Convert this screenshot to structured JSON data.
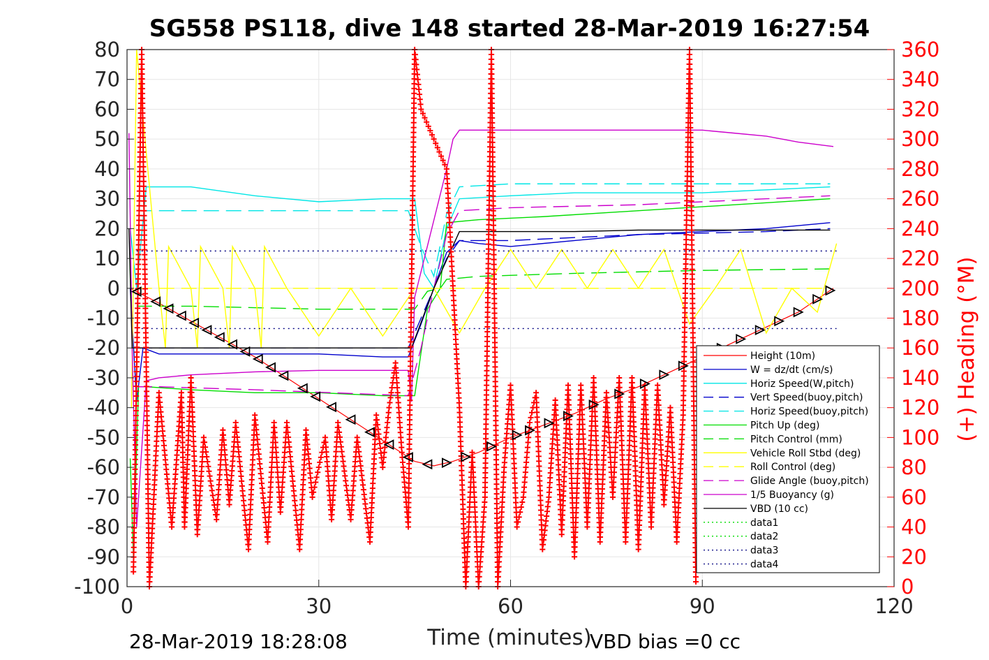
{
  "chart_data": {
    "type": "line",
    "title": "SG558 PS118, dive 148 started 28-Mar-2019 16:27:54",
    "xlabel": "Time (minutes)",
    "ylabel_right": "(+) Heading (°M)",
    "xlim": [
      0,
      120
    ],
    "ylim_left": [
      -100,
      80
    ],
    "ylim_right": [
      0,
      360
    ],
    "x_ticks": [
      0,
      30,
      60,
      90,
      120
    ],
    "y_left_ticks": [
      80,
      70,
      60,
      50,
      40,
      30,
      20,
      10,
      0,
      -10,
      -20,
      -30,
      -40,
      -50,
      -60,
      -70,
      -80,
      -90,
      -100
    ],
    "y_right_ticks": [
      360,
      340,
      320,
      300,
      280,
      260,
      240,
      220,
      200,
      180,
      160,
      140,
      120,
      100,
      80,
      60,
      40,
      20,
      0
    ],
    "grid": true,
    "legend_position": "bottom-right",
    "footer_left": "28-Mar-2019 18:28:08",
    "footer_right": "VBD bias =0 cc",
    "colors": {
      "height": "#ff0000",
      "w": "#0000cc",
      "cyan": "#00e6e6",
      "green": "#00dd00",
      "yellow": "#ffff00",
      "magenta": "#cc00cc",
      "black": "#000000",
      "heading": "#ff0000"
    },
    "series": [
      {
        "name": "Height (10m)",
        "color": "#ff0000",
        "style": "solid",
        "x": [
          0.5,
          5,
          10,
          15,
          20,
          25,
          30,
          35,
          40,
          45,
          48,
          51,
          55,
          60,
          65,
          70,
          75,
          80,
          85,
          90,
          95,
          100,
          105,
          110.5
        ],
        "y": [
          0,
          -5,
          -11,
          -17,
          -23,
          -30,
          -37,
          -44,
          -51,
          -58,
          -59.5,
          -58,
          -55,
          -50,
          -46,
          -42,
          -37,
          -33,
          -28,
          -23,
          -18,
          -13,
          -8,
          0
        ]
      },
      {
        "name": "W = dz/dt (cm/s)",
        "color": "#0000cc",
        "style": "solid",
        "x": [
          0.5,
          1.5,
          2.5,
          5,
          10,
          20,
          30,
          40,
          44,
          46,
          48,
          50,
          52,
          55,
          60,
          70,
          80,
          90,
          100,
          105,
          110
        ],
        "y": [
          0,
          -38,
          -20,
          -22,
          -22,
          -22,
          -22,
          -23,
          -23,
          -12,
          0,
          12,
          16,
          15,
          14,
          16,
          18,
          19,
          20,
          21,
          22
        ]
      },
      {
        "name": "Horiz Speed(W,pitch)",
        "color": "#00e6e6",
        "style": "solid",
        "x": [
          0.5,
          1.5,
          3,
          10,
          20,
          30,
          40,
          45,
          46.5,
          48,
          50,
          52,
          60,
          70,
          80,
          90,
          100,
          110
        ],
        "y": [
          20,
          0,
          34,
          34,
          31,
          29,
          30,
          30,
          5,
          0,
          20,
          30,
          31,
          32,
          32,
          32,
          33,
          34
        ]
      },
      {
        "name": "Vert Speed(buoy,pitch)",
        "color": "#0000cc",
        "style": "dashed",
        "x": [
          1.5,
          5,
          20,
          44,
          46,
          48,
          50,
          52,
          60,
          80,
          100,
          110
        ],
        "y": [
          -20,
          -20,
          -20,
          -20,
          -10,
          0,
          10,
          16,
          16,
          18,
          19,
          20
        ]
      },
      {
        "name": "Horiz Speed(buoy,pitch)",
        "color": "#00e6e6",
        "style": "dashed",
        "x": [
          1.5,
          5,
          20,
          44,
          46,
          48,
          50,
          52,
          60,
          80,
          100,
          110
        ],
        "y": [
          26,
          26,
          26,
          26,
          14,
          4,
          25,
          34,
          35,
          35,
          35,
          35
        ]
      },
      {
        "name": "Pitch Up (deg)",
        "color": "#00dd00",
        "style": "solid",
        "x": [
          0.5,
          1,
          1.8,
          3,
          10,
          20,
          30,
          40,
          45,
          47,
          49,
          50,
          55,
          65,
          80,
          95,
          110
        ],
        "y": [
          -57,
          -90,
          -33,
          -33,
          -34,
          -35,
          -35,
          -36,
          -36,
          -7,
          0,
          22,
          23,
          24,
          26,
          28,
          30
        ]
      },
      {
        "name": "Pitch Control (mm)",
        "color": "#00dd00",
        "style": "dashed",
        "x": [
          1.5,
          10,
          20,
          30,
          44,
          45,
          47,
          49,
          50,
          55,
          70,
          90,
          110
        ],
        "y": [
          -6,
          -6,
          -6.5,
          -7,
          -7,
          -7,
          -1,
          0,
          3,
          4,
          5,
          6,
          6.5
        ]
      },
      {
        "name": "Vehicle Roll Stbd (deg)",
        "color": "#ffff00",
        "style": "solid",
        "x": [
          0.7,
          1.5,
          5,
          6,
          6.5,
          10,
          11,
          11.5,
          15,
          16,
          16.5,
          20,
          21,
          21.5,
          25,
          30,
          35,
          40,
          45,
          48,
          52,
          56,
          60,
          64,
          68,
          72,
          76,
          80,
          84,
          88,
          92,
          96,
          100,
          104,
          108,
          111
        ],
        "y": [
          -40,
          80,
          0,
          -20,
          14,
          0,
          -20,
          14,
          0,
          -20,
          14,
          0,
          -20,
          14,
          0,
          -16,
          0,
          -16,
          0,
          0,
          -15,
          0,
          13,
          0,
          13,
          0,
          13,
          0,
          13,
          -12,
          0,
          13,
          -15,
          0,
          -8,
          15
        ]
      },
      {
        "name": "Roll Control (deg)",
        "color": "#ffff00",
        "style": "dashed",
        "x": [
          1.5,
          110
        ],
        "y": [
          0,
          0
        ]
      },
      {
        "name": "Glide Angle (buoy,pitch)",
        "color": "#cc00cc",
        "style": "dashed",
        "x": [
          1.5,
          5,
          20,
          44,
          46,
          48,
          50,
          52,
          60,
          80,
          100,
          110
        ],
        "y": [
          -33,
          -33,
          -34,
          -36,
          -20,
          0,
          18,
          26,
          27,
          28,
          30,
          31
        ]
      },
      {
        "name": "1/5 Buoyancy (g)",
        "color": "#cc00cc",
        "style": "solid",
        "x": [
          0.3,
          0.8,
          1.5,
          3,
          5,
          10,
          20,
          30,
          44,
          44.5,
          45,
          50,
          51,
          52,
          60,
          80,
          90,
          95,
          100,
          105,
          110.5
        ],
        "y": [
          52,
          -20,
          -80,
          -31,
          -30,
          -29,
          -28,
          -27.5,
          -27.5,
          -38,
          -3,
          40,
          50,
          53,
          53,
          53,
          53,
          52,
          51,
          49,
          47.5
        ]
      },
      {
        "name": "VBD (10 cc)",
        "color": "#000000",
        "style": "solid",
        "x": [
          0.3,
          0.8,
          1.5,
          2,
          5,
          20,
          30,
          44,
          44.5,
          48,
          52,
          60,
          70,
          80,
          90,
          100,
          110
        ],
        "y": [
          20,
          -20,
          -20,
          -20,
          -20,
          -20,
          -20,
          -20,
          -20,
          0,
          19,
          19,
          19,
          19.5,
          19.5,
          19.5,
          19.5
        ]
      },
      {
        "name": "data1",
        "color": "#00dd00",
        "style": "dotted",
        "x": [],
        "y": []
      },
      {
        "name": "data2",
        "color": "#00dd00",
        "style": "dotted",
        "x": [],
        "y": []
      },
      {
        "name": "data3",
        "color": "#000080",
        "style": "dotted",
        "x": [
          1.5,
          111
        ],
        "y": [
          12.5,
          12.5
        ]
      },
      {
        "name": "data4",
        "color": "#000080",
        "style": "dotted",
        "x": [
          1.5,
          111
        ],
        "y": [
          -13.5,
          -13.5
        ]
      }
    ],
    "heading": {
      "color": "#ff0000",
      "marker": "+",
      "axis": "right",
      "x": [
        1,
        2.3,
        3.5,
        5,
        7,
        8.5,
        9,
        10,
        11,
        12,
        14,
        15,
        16,
        17,
        19,
        20,
        22,
        23,
        24,
        25,
        27,
        28,
        29,
        31,
        32,
        33,
        35,
        36,
        38,
        39,
        40,
        41,
        42,
        43,
        44,
        45,
        46,
        48,
        50,
        52,
        53,
        54,
        55,
        56,
        57,
        58,
        59,
        60,
        61,
        62,
        63,
        64,
        65,
        66,
        67,
        68,
        69,
        70,
        71,
        72,
        73,
        74,
        75,
        76,
        77,
        78,
        79,
        80,
        81,
        82,
        83,
        84,
        85,
        86,
        87,
        88,
        89
      ],
      "y": [
        10,
        360,
        0,
        130,
        40,
        130,
        40,
        140,
        35,
        100,
        45,
        105,
        55,
        110,
        25,
        115,
        30,
        110,
        50,
        110,
        25,
        105,
        60,
        100,
        45,
        110,
        45,
        100,
        30,
        115,
        80,
        120,
        150,
        90,
        40,
        360,
        320,
        300,
        280,
        120,
        0,
        90,
        0,
        60,
        360,
        0,
        80,
        135,
        40,
        60,
        110,
        130,
        25,
        60,
        125,
        35,
        135,
        20,
        135,
        40,
        140,
        30,
        130,
        60,
        140,
        30,
        140,
        25,
        135,
        40,
        135,
        55,
        120,
        30,
        115,
        360,
        0
      ]
    },
    "markers": {
      "color": "#000000",
      "shape": "triangle",
      "x": [
        1.5,
        4.5,
        6.5,
        8.5,
        10.5,
        12.5,
        14.5,
        16.5,
        18.5,
        20.5,
        22.5,
        24.5,
        27.5,
        29.5,
        32,
        35,
        38,
        41,
        44,
        47,
        50,
        53,
        57,
        61,
        63,
        66,
        69,
        73,
        77,
        81,
        84,
        87,
        90,
        93,
        96,
        99,
        102,
        105,
        108,
        110
      ]
    }
  }
}
